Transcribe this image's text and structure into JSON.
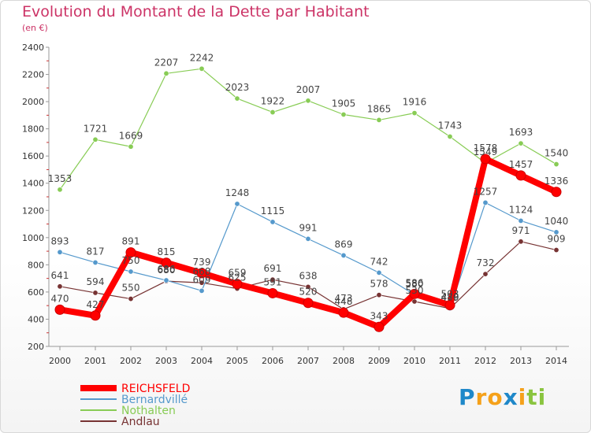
{
  "chart_data": {
    "type": "line",
    "title": "Evolution du Montant de la Dette par Habitant",
    "subtitle": "(en €)",
    "x": [
      "2000",
      "2001",
      "2002",
      "2003",
      "2004",
      "2005",
      "2006",
      "2007",
      "2008",
      "2009",
      "2010",
      "2011",
      "2012",
      "2013",
      "2014"
    ],
    "ylim": [
      200,
      2400
    ],
    "yticks": [
      200,
      400,
      600,
      800,
      1000,
      1200,
      1400,
      1600,
      1800,
      2000,
      2200,
      2400
    ],
    "grid": false,
    "legend_position": "bottom-left",
    "series": [
      {
        "name": "REICHSFELD",
        "color": "#ff0000",
        "values": [
          470,
          427,
          891,
          815,
          739,
          659,
          591,
          520,
          448,
          343,
          586,
          503,
          1578,
          1457,
          1336
        ],
        "labels": [
          "470",
          "427",
          "891",
          "815",
          "739",
          "659",
          "591",
          "520",
          "448",
          "343",
          "586",
          "503",
          "1578",
          "1457",
          "1336"
        ]
      },
      {
        "name": "Bernardvillé",
        "color": "#5599cc",
        "values": [
          893,
          817,
          750,
          686,
          609,
          1248,
          1115,
          991,
          869,
          742,
          580,
          480,
          1257,
          1124,
          1040
        ],
        "labels": [
          "893",
          "817",
          "750",
          "686",
          "609",
          "1248",
          "1115",
          "991",
          "869",
          "742",
          "580",
          "480",
          "1257",
          "1124",
          "1040"
        ]
      },
      {
        "name": "Nothalten",
        "color": "#88cc55",
        "values": [
          1353,
          1721,
          1669,
          2207,
          2242,
          2023,
          1922,
          2007,
          1905,
          1865,
          1916,
          1743,
          1549,
          1693,
          1540
        ],
        "labels": [
          "1353",
          "1721",
          "1669",
          "2207",
          "2242",
          "2023",
          "1922",
          "2007",
          "1905",
          "1865",
          "1916",
          "1743",
          "1549",
          "1693",
          "1540"
        ]
      },
      {
        "name": "Andlau",
        "color": "#773333",
        "values": [
          641,
          594,
          550,
          680,
          668,
          625,
          691,
          638,
          473,
          578,
          530,
          479,
          732,
          971,
          909
        ],
        "labels": [
          "641",
          "594",
          "550",
          "680",
          "668",
          "625",
          "691",
          "638",
          "473",
          "578",
          "530",
          "479",
          "732",
          "971",
          "909"
        ]
      }
    ]
  },
  "brand": {
    "letters": [
      "P",
      "r",
      "o",
      "x",
      "i",
      "t",
      "i"
    ],
    "colors": [
      "#1f88c9",
      "#f5a11a",
      "#f5a11a",
      "#1f88c9",
      "#f5a11a",
      "#8ac43f",
      "#8ac43f"
    ]
  }
}
